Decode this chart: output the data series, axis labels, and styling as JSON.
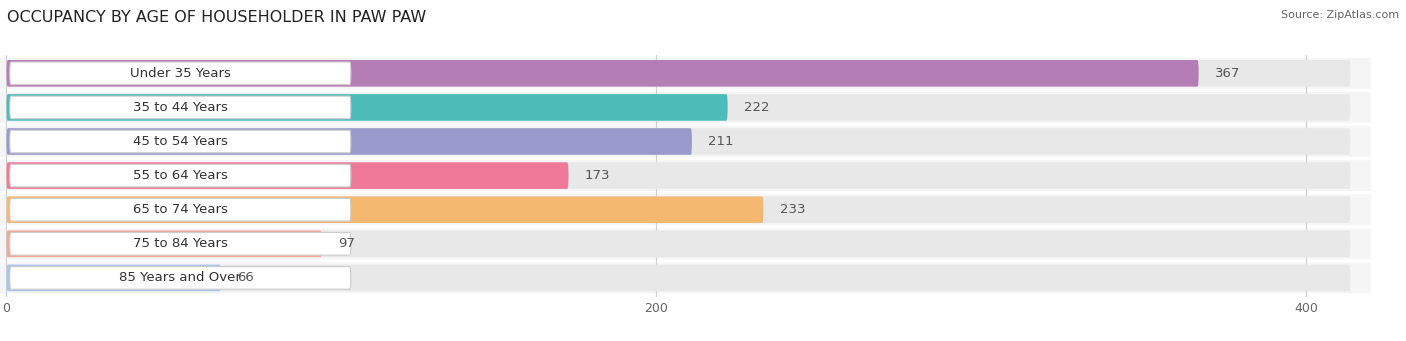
{
  "title": "OCCUPANCY BY AGE OF HOUSEHOLDER IN PAW PAW",
  "source": "Source: ZipAtlas.com",
  "categories": [
    "Under 35 Years",
    "35 to 44 Years",
    "45 to 54 Years",
    "55 to 64 Years",
    "65 to 74 Years",
    "75 to 84 Years",
    "85 Years and Over"
  ],
  "values": [
    367,
    222,
    211,
    173,
    233,
    97,
    66
  ],
  "bar_colors": [
    "#b57db5",
    "#4dbcb8",
    "#9999cc",
    "#f07898",
    "#f5b870",
    "#f0a898",
    "#aac4ea"
  ],
  "bar_bg_color": "#e8e8e8",
  "row_bg_color": "#f5f5f5",
  "label_pill_color": "#ffffff",
  "xlim_max": 420,
  "xticks": [
    0,
    200,
    400
  ],
  "title_fontsize": 11.5,
  "label_fontsize": 9.5,
  "value_fontsize": 9.5,
  "background_color": "#ffffff",
  "grid_color": "#d0d0d0"
}
